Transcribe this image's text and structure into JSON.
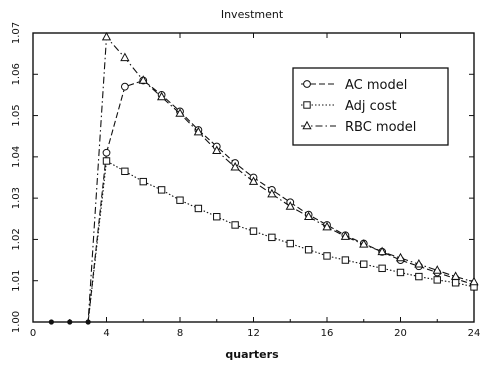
{
  "chart_data": {
    "type": "line",
    "title": "Investment",
    "xlabel": "quarters",
    "ylabel": "",
    "xlim": [
      0,
      24
    ],
    "ylim": [
      1.0,
      1.07
    ],
    "xticks": [
      "0",
      "4",
      "8",
      "12",
      "16",
      "20",
      "24"
    ],
    "yticks": [
      "1.00",
      "1.01",
      "1.02",
      "1.03",
      "1.04",
      "1.05",
      "1.06",
      "1.07"
    ],
    "grid": false,
    "legend_position": "top-right",
    "x": [
      1,
      2,
      3,
      4,
      5,
      6,
      7,
      8,
      9,
      10,
      11,
      12,
      13,
      14,
      15,
      16,
      17,
      18,
      19,
      20,
      21,
      22,
      23,
      24
    ],
    "series": [
      {
        "name": "AC model",
        "line_style": "dashed",
        "marker": "circle",
        "values": [
          1.0,
          1.0,
          1.0,
          1.041,
          1.057,
          1.0585,
          1.055,
          1.051,
          1.0465,
          1.0425,
          1.0385,
          1.035,
          1.032,
          1.029,
          1.026,
          1.0235,
          1.021,
          1.019,
          1.017,
          1.015,
          1.0135,
          1.012,
          1.0105,
          1.009
        ]
      },
      {
        "name": "Adj cost",
        "line_style": "dotted",
        "marker": "square",
        "values": [
          1.0,
          1.0,
          1.0,
          1.039,
          1.0365,
          1.034,
          1.032,
          1.0295,
          1.0275,
          1.0255,
          1.0235,
          1.022,
          1.0205,
          1.019,
          1.0175,
          1.016,
          1.015,
          1.014,
          1.013,
          1.012,
          1.011,
          1.0102,
          1.0095,
          1.0085
        ]
      },
      {
        "name": "RBC model",
        "line_style": "dashdot",
        "marker": "triangle",
        "values": [
          1.0,
          1.0,
          1.0,
          1.069,
          1.064,
          1.0585,
          1.0545,
          1.0505,
          1.046,
          1.0415,
          1.0375,
          1.034,
          1.031,
          1.028,
          1.0255,
          1.023,
          1.0207,
          1.0188,
          1.017,
          1.0155,
          1.014,
          1.0125,
          1.011,
          1.0097
        ]
      }
    ]
  }
}
